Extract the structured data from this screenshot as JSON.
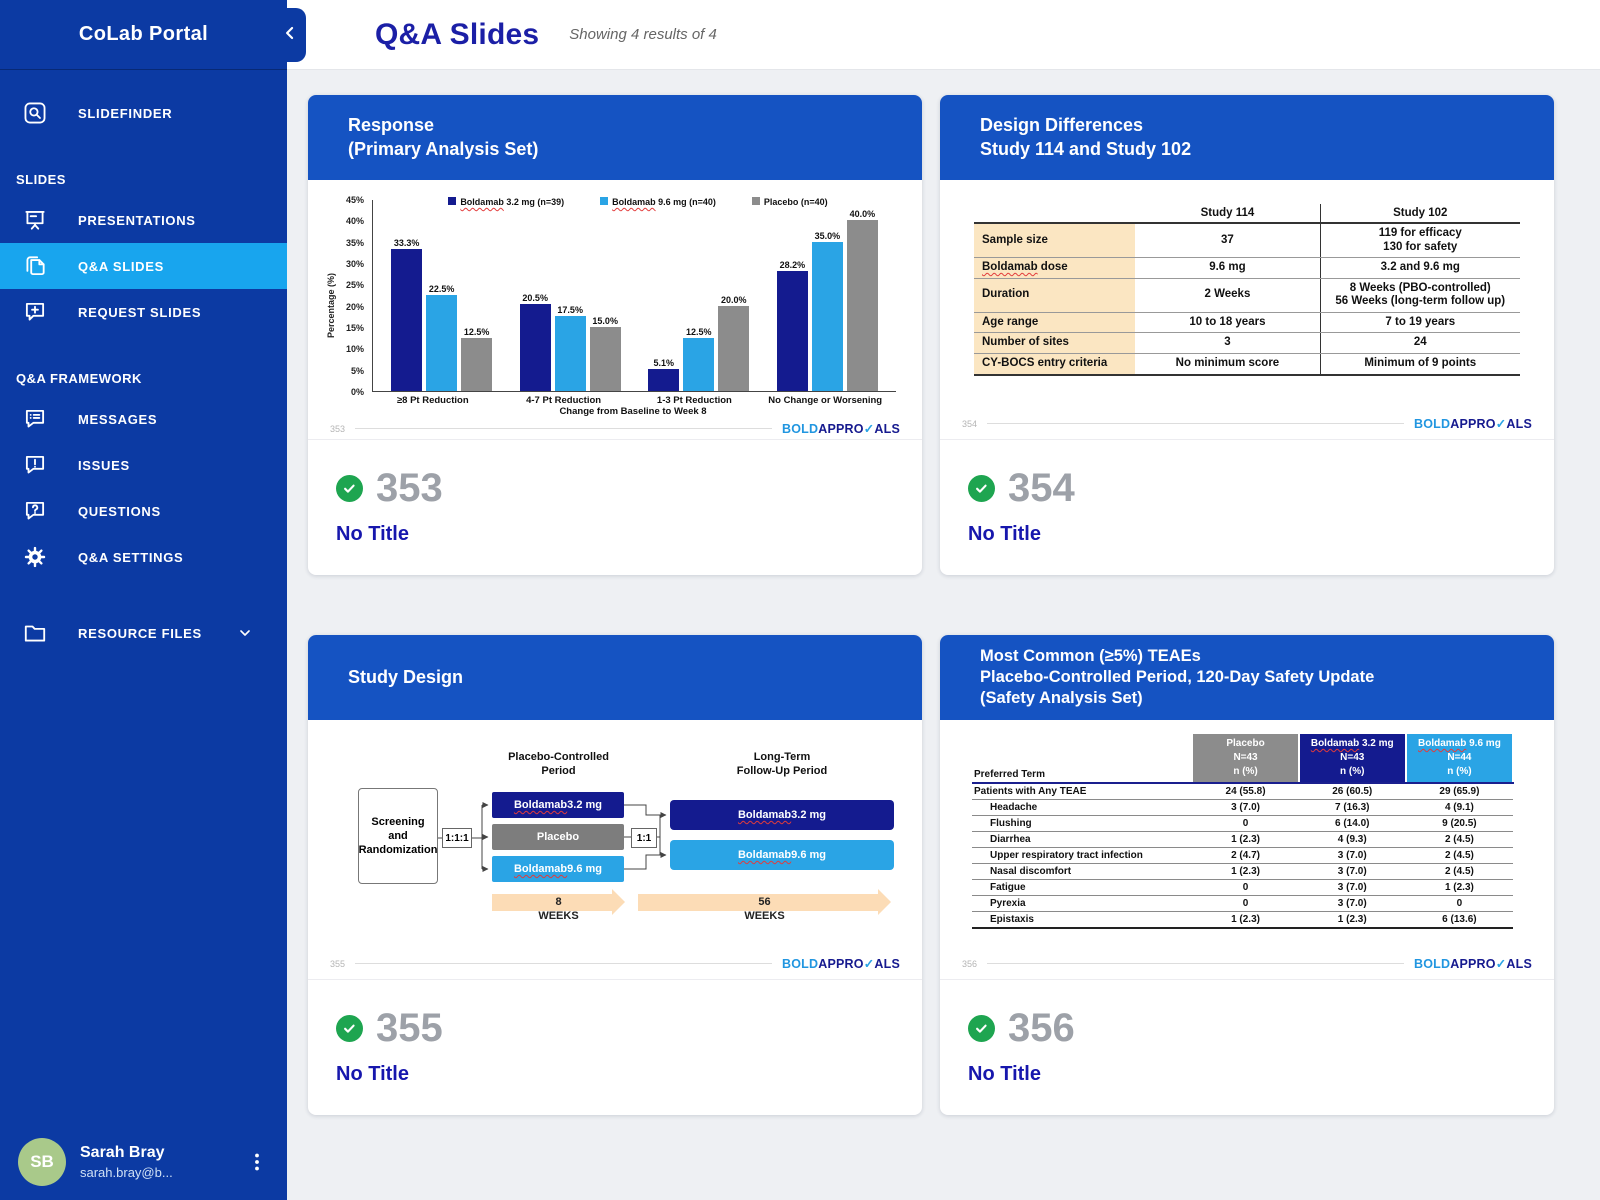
{
  "sidebar": {
    "app_title": "CoLab Portal",
    "sections": [
      "SLIDES",
      "Q&A FRAMEWORK"
    ],
    "items": [
      {
        "label": "SLIDEFINDER",
        "icon": "search-icon"
      },
      {
        "label": "PRESENTATIONS",
        "icon": "presentation-icon"
      },
      {
        "label": "Q&A SLIDES",
        "icon": "slides-copy-icon",
        "active": true
      },
      {
        "label": "REQUEST SLIDES",
        "icon": "request-slide-icon"
      },
      {
        "label": "MESSAGES",
        "icon": "message-list-icon"
      },
      {
        "label": "ISSUES",
        "icon": "issue-bubble-icon"
      },
      {
        "label": "QUESTIONS",
        "icon": "question-bubble-icon"
      },
      {
        "label": "Q&A SETTINGS",
        "icon": "gear-icon"
      },
      {
        "label": "RESOURCE FILES",
        "icon": "folder-icon"
      }
    ],
    "user": {
      "initials": "SB",
      "name": "Sarah Bray",
      "email": "sarah.bray@b..."
    }
  },
  "header": {
    "title": "Q&A Slides",
    "results_text": "Showing 4 results of 4"
  },
  "logo": {
    "part1": "BOLD",
    "part2": "APPRO",
    "check": "✓",
    "part3": "ALS"
  },
  "chart_data": {
    "type": "bar",
    "categories": [
      "≥8 Pt Reduction",
      "4-7 Pt Reduction",
      "1-3 Pt Reduction",
      "No Change or Worsening"
    ],
    "series": [
      {
        "name": "Boldamab 3.2 mg (n=39)",
        "color": "#141b8f",
        "values": [
          33.3,
          20.5,
          5.1,
          28.2
        ]
      },
      {
        "name": "Boldamab 9.6 mg (n=40)",
        "color": "#2aa4e5",
        "values": [
          22.5,
          17.5,
          12.5,
          35.0
        ]
      },
      {
        "name": "Placebo (n=40)",
        "color": "#8c8c8c",
        "values": [
          12.5,
          15.0,
          20.0,
          40.0
        ]
      }
    ],
    "title": "",
    "xlabel": "Change from Baseline to Week 8",
    "ylabel": "Percentage (%)",
    "ylim": [
      0,
      45
    ],
    "ytick_step": 5,
    "legend_position": "top",
    "grid": false
  },
  "cards": [
    {
      "number": "353",
      "title": "No Title",
      "slide_number": "353",
      "header": "Response\n(Primary Analysis Set)"
    },
    {
      "number": "354",
      "title": "No Title",
      "slide_number": "354",
      "header": "Design Differences\nStudy 114 and Study 102",
      "table": {
        "col_headers": [
          "Study 114",
          "Study 102"
        ],
        "rows": [
          {
            "label": "Sample size",
            "v1": "37",
            "v2": "119 for efficacy\n130 for safety"
          },
          {
            "label": "Boldamab dose",
            "v1": "9.6 mg",
            "v2": "3.2 and 9.6 mg"
          },
          {
            "label": "Duration",
            "v1": "2 Weeks",
            "v2": "8 Weeks (PBO-controlled)\n56 Weeks (long-term follow up)"
          },
          {
            "label": "Age range",
            "v1": "10 to 18 years",
            "v2": "7 to 19 years"
          },
          {
            "label": "Number of sites",
            "v1": "3",
            "v2": "24"
          },
          {
            "label": "CY-BOCS entry criteria",
            "v1": "No minimum score",
            "v2": "Minimum of 9 points"
          }
        ]
      }
    },
    {
      "number": "355",
      "title": "No Title",
      "slide_number": "355",
      "header": "Study Design",
      "diagram": {
        "period1_heading": "Placebo-Controlled\nPeriod",
        "period2_heading": "Long-Term\nFollow-Up Period",
        "screening_label": "Screening\nand\nRandomization",
        "ratio1": "1:1:1",
        "ratio2": "1:1",
        "pc_arms": [
          {
            "label": "Boldamab 3.2 mg",
            "color": "#141b8f"
          },
          {
            "label": "Placebo",
            "color": "#7d7d7d"
          },
          {
            "label": "Boldamab 9.6 mg",
            "color": "#2aa4e5"
          }
        ],
        "lt_arms": [
          {
            "label": "Boldamab 3.2 mg",
            "color": "#141b8f"
          },
          {
            "label": "Boldamab 9.6 mg",
            "color": "#2aa4e5"
          }
        ],
        "timeline": [
          {
            "duration": "8",
            "unit": "WEEKS"
          },
          {
            "duration": "56",
            "unit": "WEEKS"
          }
        ]
      }
    },
    {
      "number": "356",
      "title": "No Title",
      "slide_number": "356",
      "header": "Most Common (≥5%) TEAEs\nPlacebo-Controlled Period, 120-Day Safety Update\n(Safety Analysis Set)",
      "table": {
        "term_header": "Preferred Term",
        "columns": [
          {
            "label": "Placebo",
            "n": "N=43",
            "unit": "n (%)",
            "color": "#8c8c8c"
          },
          {
            "label": "Boldamab 3.2 mg",
            "n": "N=43",
            "unit": "n (%)",
            "color": "#141b8f"
          },
          {
            "label": "Boldamab 9.6 mg",
            "n": "N=44",
            "unit": "n (%)",
            "color": "#2aa4e5"
          }
        ],
        "rows": [
          {
            "term": "Patients with Any TEAE",
            "indent": false,
            "values": [
              "24 (55.8)",
              "26 (60.5)",
              "29 (65.9)"
            ]
          },
          {
            "term": "Headache",
            "indent": true,
            "values": [
              "3 (7.0)",
              "7 (16.3)",
              "4 (9.1)"
            ]
          },
          {
            "term": "Flushing",
            "indent": true,
            "values": [
              "0",
              "6 (14.0)",
              "9 (20.5)"
            ]
          },
          {
            "term": "Diarrhea",
            "indent": true,
            "values": [
              "1 (2.3)",
              "4 (9.3)",
              "2 (4.5)"
            ]
          },
          {
            "term": "Upper respiratory tract infection",
            "indent": true,
            "values": [
              "2 (4.7)",
              "3 (7.0)",
              "2 (4.5)"
            ]
          },
          {
            "term": "Nasal discomfort",
            "indent": true,
            "values": [
              "1 (2.3)",
              "3 (7.0)",
              "2 (4.5)"
            ]
          },
          {
            "term": "Fatigue",
            "indent": true,
            "values": [
              "0",
              "3 (7.0)",
              "1 (2.3)"
            ]
          },
          {
            "term": "Pyrexia",
            "indent": true,
            "values": [
              "0",
              "3 (7.0)",
              "0"
            ]
          },
          {
            "term": "Epistaxis",
            "indent": true,
            "values": [
              "1 (2.3)",
              "1 (2.3)",
              "6 (13.6)"
            ]
          }
        ]
      }
    }
  ]
}
